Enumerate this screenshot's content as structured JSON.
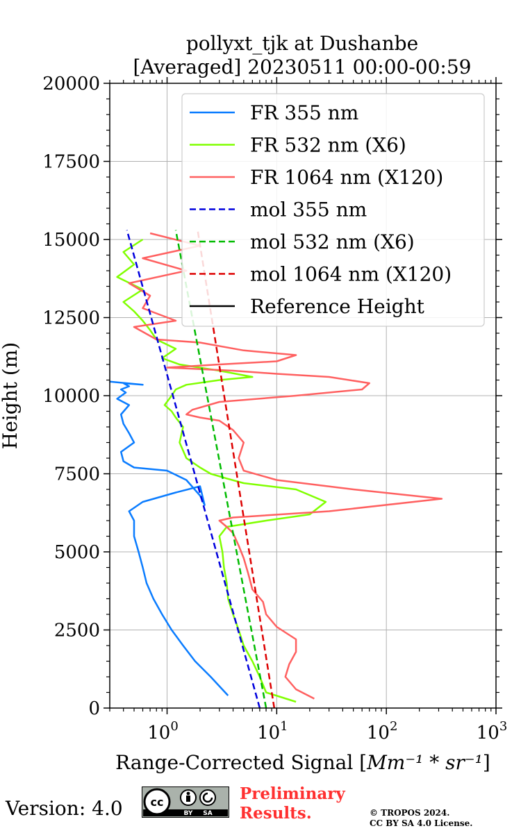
{
  "chart_data": {
    "type": "line",
    "title_line1": "pollyxt_tjk at Dushanbe",
    "title_line2": "[Averaged] 20230511 00:00-00:59",
    "xlabel": "Range-Corrected Signal [",
    "xlabel_units": "Mm⁻¹ * sr⁻¹",
    "xlabel_end": "]",
    "ylabel": "Height (m)",
    "xscale": "log",
    "xlim": [
      0.3,
      1000
    ],
    "ylim": [
      0,
      20000
    ],
    "x_ticks": [
      {
        "value": 1,
        "label": "10",
        "exp": "0"
      },
      {
        "value": 10,
        "label": "10",
        "exp": "1"
      },
      {
        "value": 100,
        "label": "10",
        "exp": "2"
      },
      {
        "value": 1000,
        "label": "10",
        "exp": "3"
      }
    ],
    "y_ticks": [
      0,
      2500,
      5000,
      7500,
      10000,
      12500,
      15000,
      17500,
      20000
    ],
    "y_tick_labels": [
      "0",
      "2500",
      "5000",
      "7500",
      "10000",
      "12500",
      "15000",
      "17500",
      "20000"
    ],
    "grid": true,
    "legend_position": "top-right",
    "series": [
      {
        "name": "FR 355 nm",
        "color": "#0a7cff",
        "style": "solid",
        "x": [
          3.6,
          2.5,
          1.8,
          1.4,
          1.1,
          0.9,
          0.75,
          0.65,
          0.6,
          0.55,
          0.5,
          0.5,
          0.45,
          0.6,
          1.2,
          2.0,
          2.2,
          2.0,
          1.5,
          1.0,
          0.5,
          0.4,
          0.38,
          0.5,
          0.45,
          0.4,
          0.38,
          0.45,
          0.35,
          0.42,
          0.38,
          0.45,
          0.4,
          0.6,
          0.3
        ],
        "y": [
          400,
          1000,
          1500,
          2000,
          2500,
          3000,
          3500,
          4000,
          4500,
          5000,
          5500,
          6000,
          6300,
          6600,
          6900,
          7100,
          6500,
          6800,
          7300,
          7600,
          7700,
          7900,
          8200,
          8500,
          8800,
          9100,
          9400,
          9700,
          9900,
          10100,
          10200,
          10300,
          10400,
          10350,
          10450
        ]
      },
      {
        "name": "FR 532 nm (X6)",
        "color": "#80ff00",
        "style": "solid",
        "x": [
          15,
          8,
          7,
          6,
          5,
          4.5,
          4,
          3.6,
          3.5,
          3.3,
          3.2,
          3.0,
          3.5,
          8,
          20,
          28,
          15,
          5,
          3.5,
          2.5,
          2.0,
          1.5,
          1.3,
          1.4,
          1.2,
          1.1,
          0.95,
          1.1,
          1.2,
          1.5,
          3,
          6,
          3,
          1.3,
          0.9,
          1.2,
          0.8,
          0.7,
          0.6,
          0.5,
          0.4,
          0.6,
          0.35,
          0.5,
          0.4,
          0.6
        ],
        "y": [
          200,
          500,
          1000,
          1500,
          2000,
          2500,
          3000,
          3500,
          4000,
          4500,
          5000,
          5500,
          5800,
          6000,
          6200,
          6600,
          7000,
          7200,
          7350,
          7500,
          7700,
          8000,
          8500,
          9000,
          9300,
          9500,
          9700,
          10000,
          10200,
          10350,
          10500,
          10600,
          10800,
          11000,
          11200,
          11500,
          11800,
          12100,
          12400,
          12700,
          13000,
          13400,
          13800,
          14200,
          14600,
          15000
        ]
      },
      {
        "name": "FR 1064 nm (X120)",
        "color": "#ff6060",
        "style": "solid",
        "x": [
          22,
          15,
          12,
          13,
          15,
          15,
          10,
          8,
          7.5,
          6,
          5.5,
          5,
          4.5,
          4,
          3.5,
          3,
          4,
          30,
          320,
          50,
          10,
          5,
          4.5,
          5,
          4,
          3,
          2,
          1.5,
          1.7,
          3,
          15,
          60,
          70,
          30,
          10,
          4,
          1,
          3,
          10,
          15,
          5,
          2,
          0.8,
          0.5,
          1.2,
          0.6,
          0.7,
          0.45,
          1.5,
          0.6,
          2.0,
          0.7
        ],
        "y": [
          300,
          600,
          1000,
          1400,
          1800,
          2200,
          2600,
          3000,
          3400,
          3800,
          4300,
          4800,
          5200,
          5600,
          5800,
          6000,
          6100,
          6300,
          6700,
          7000,
          7300,
          7600,
          8000,
          8500,
          8900,
          9200,
          9300,
          9400,
          9550,
          9800,
          10000,
          10200,
          10400,
          10600,
          10700,
          10800,
          10900,
          11000,
          11100,
          11300,
          11450,
          11700,
          11800,
          12200,
          12400,
          12800,
          13200,
          13600,
          14000,
          14400,
          14800,
          15200
        ]
      },
      {
        "name": "mol 355 nm",
        "color": "#0000dd",
        "style": "dashed",
        "x": [
          7.0,
          0.43
        ],
        "y": [
          0,
          15300
        ]
      },
      {
        "name": "mol 532 nm (X6)",
        "color": "#00bb00",
        "style": "dashed",
        "x": [
          8.0,
          1.2
        ],
        "y": [
          0,
          15300
        ]
      },
      {
        "name": "mol 1064 nm (X120)",
        "color": "#dd0000",
        "style": "dashed",
        "x": [
          9.5,
          1.9
        ],
        "y": [
          0,
          15300
        ]
      },
      {
        "name": "Reference Height",
        "color": "#000000",
        "style": "solid",
        "x": [],
        "y": []
      }
    ]
  },
  "footer": {
    "version_label": "Version: 4.0",
    "license_badge": {
      "cc": "cc",
      "by": "BY",
      "sa": "SA"
    },
    "preliminary_line1": "Preliminary",
    "preliminary_line2": "Results.",
    "copyright_line1": "© TROPOS 2024.",
    "copyright_line2": "CC BY SA 4.0 License."
  }
}
